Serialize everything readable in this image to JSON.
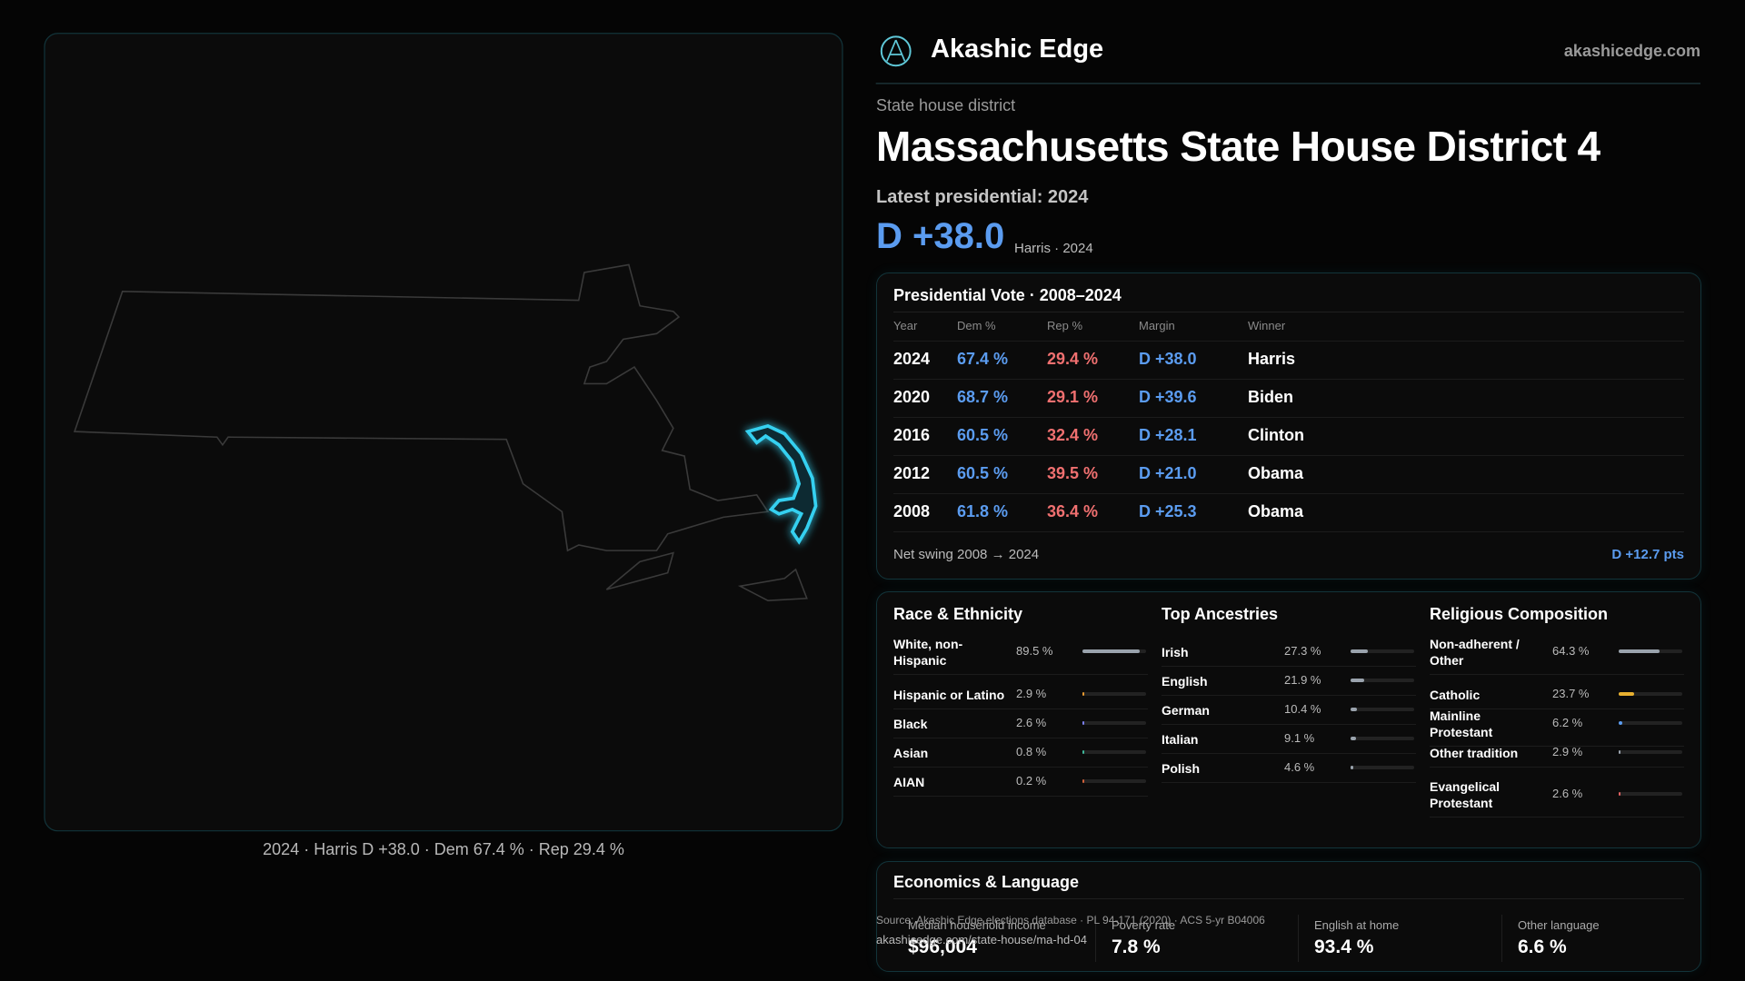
{
  "brand": {
    "name": "Akashic Edge",
    "url": "akashicedge.com"
  },
  "header": {
    "kicker": "State house district",
    "title": "Massachusetts State House District 4",
    "latest": "Latest presidential: 2024",
    "margin": "D +38.0",
    "margin_note": "Harris · 2024"
  },
  "map": {
    "caption": "2024 · Harris D +38.0 · Dem 67.4 % · Rep 29.4 %"
  },
  "vote": {
    "title": "Presidential Vote · 2008–2024",
    "columns": [
      "Year",
      "Dem %",
      "Rep %",
      "Margin",
      "Winner"
    ],
    "rows": [
      [
        "2024",
        "67.4 %",
        "29.4 %",
        "D +38.0",
        "Harris"
      ],
      [
        "2020",
        "68.7 %",
        "29.1 %",
        "D +39.6",
        "Biden"
      ],
      [
        "2016",
        "60.5 %",
        "32.4 %",
        "D +28.1",
        "Clinton"
      ],
      [
        "2012",
        "60.5 %",
        "39.5 %",
        "D +21.0",
        "Obama"
      ],
      [
        "2008",
        "61.8 %",
        "36.4 %",
        "D +25.3",
        "Obama"
      ]
    ],
    "footer_label": "Net swing 2008 → 2024",
    "footer_value": "D +12.7 pts"
  },
  "demographics": [
    {
      "title": "Race & Ethnicity",
      "items": [
        {
          "label": "White, non-Hispanic",
          "value": 89.5,
          "value_label": "89.5 %",
          "color": "#9aa3ad"
        },
        {
          "label": "Hispanic or Latino",
          "value": 2.9,
          "value_label": "2.9 %",
          "color": "#e89a30"
        },
        {
          "label": "Black",
          "value": 2.6,
          "value_label": "2.6 %",
          "color": "#7b7ff0"
        },
        {
          "label": "Asian",
          "value": 0.8,
          "value_label": "0.8 %",
          "color": "#3fb89a"
        },
        {
          "label": "AIAN",
          "value": 0.2,
          "value_label": "0.2 %",
          "color": "#d0603a"
        }
      ]
    },
    {
      "title": "Top Ancestries",
      "items": [
        {
          "label": "Irish",
          "value": 27.3,
          "value_label": "27.3 %",
          "color": "#9aa3ad"
        },
        {
          "label": "English",
          "value": 21.9,
          "value_label": "21.9 %",
          "color": "#9aa3ad"
        },
        {
          "label": "German",
          "value": 10.4,
          "value_label": "10.4 %",
          "color": "#9aa3ad"
        },
        {
          "label": "Italian",
          "value": 9.1,
          "value_label": "9.1 %",
          "color": "#9aa3ad"
        },
        {
          "label": "Polish",
          "value": 4.6,
          "value_label": "4.6 %",
          "color": "#9aa3ad"
        }
      ]
    },
    {
      "title": "Religious Composition",
      "items": [
        {
          "label": "Non-adherent / Other",
          "value": 64.3,
          "value_label": "64.3 %",
          "color": "#9aa3ad"
        },
        {
          "label": "Catholic",
          "value": 23.7,
          "value_label": "23.7 %",
          "color": "#e8b030"
        },
        {
          "label": "Mainline Protestant",
          "value": 6.2,
          "value_label": "6.2 %",
          "color": "#5b9cf0"
        },
        {
          "label": "Other tradition",
          "value": 2.9,
          "value_label": "2.9 %",
          "color": "#9aa3ad"
        },
        {
          "label": "Evangelical Protestant",
          "value": 2.6,
          "value_label": "2.6 %",
          "color": "#e06060"
        }
      ]
    }
  ],
  "economics": {
    "title": "Economics & Language",
    "stats": [
      {
        "label": "Median household income",
        "value": "$96,004"
      },
      {
        "label": "Poverty rate",
        "value": "7.8 %"
      },
      {
        "label": "English at home",
        "value": "93.4 %"
      },
      {
        "label": "Other language",
        "value": "6.6 %"
      }
    ]
  },
  "source": {
    "text": "Source: Akashic Edge elections database · PL 94-171 (2020) · ACS 5-yr B04006",
    "url": "akashicedge.com/state-house/ma-hd-04"
  }
}
